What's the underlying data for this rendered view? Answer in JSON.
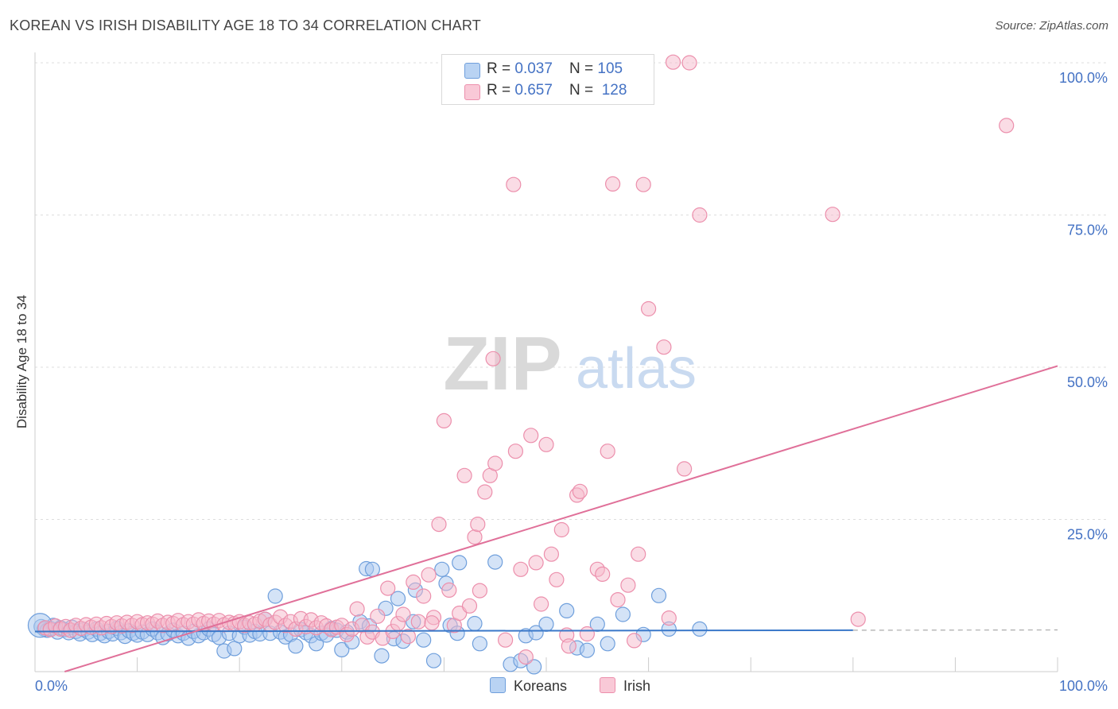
{
  "title": "KOREAN VS IRISH DISABILITY AGE 18 TO 34 CORRELATION CHART",
  "source": "Source: ZipAtlas.com",
  "watermark": {
    "zip": "ZIP",
    "atlas": "atlas"
  },
  "legend": {
    "rows": [
      {
        "r_label": "R = ",
        "r_value": "0.037",
        "n_label": "N = ",
        "n_value": "105"
      },
      {
        "r_label": "R = ",
        "r_value": "0.657",
        "n_label": "N = ",
        "n_value": "128"
      }
    ]
  },
  "bottom_legend": {
    "koreans": "Koreans",
    "irish": "Irish"
  },
  "colors": {
    "korean_fill": "#a9c8ef",
    "korean_stroke": "#6f9fdc",
    "korean_line": "#3a78c9",
    "irish_fill": "#f6b9cc",
    "irish_stroke": "#ec8fac",
    "irish_line": "#e07099",
    "tick_label": "#4472c4",
    "grid": "#dddddd"
  },
  "chart_data": {
    "type": "scatter",
    "title": "KOREAN VS IRISH DISABILITY AGE 18 TO 34 CORRELATION CHART",
    "xlabel": "",
    "ylabel": "Disability Age 18 to 34",
    "xlim": [
      0,
      100
    ],
    "ylim": [
      0,
      100
    ],
    "x_tick_labels": [
      "0.0%",
      "100.0%"
    ],
    "y_ticks": [
      25,
      50,
      75,
      100
    ],
    "y_tick_labels": [
      "25.0%",
      "50.0%",
      "75.0%",
      "100.0%"
    ],
    "grid": true,
    "legend_position": "top-center",
    "series": [
      {
        "name": "Koreans",
        "r": 0.037,
        "n": 105,
        "trend": {
          "x": [
            0,
            80
          ],
          "y": [
            6.6,
            6.8
          ],
          "dashed_extension_to": 100
        },
        "points": [
          [
            0.6,
            7.4
          ],
          [
            0.9,
            7.0
          ],
          [
            1.2,
            6.8
          ],
          [
            1.5,
            7.1
          ],
          [
            1.8,
            7.6
          ],
          [
            2.2,
            6.5
          ],
          [
            2.5,
            7.2
          ],
          [
            2.9,
            6.9
          ],
          [
            3.3,
            6.4
          ],
          [
            3.6,
            7.3
          ],
          [
            4.0,
            6.6
          ],
          [
            4.4,
            6.2
          ],
          [
            4.8,
            6.9
          ],
          [
            5.2,
            6.5
          ],
          [
            5.6,
            6.1
          ],
          [
            6.0,
            7.0
          ],
          [
            6.4,
            6.3
          ],
          [
            6.8,
            5.9
          ],
          [
            7.2,
            6.6
          ],
          [
            7.6,
            6.2
          ],
          [
            8.0,
            7.1
          ],
          [
            8.4,
            6.4
          ],
          [
            8.8,
            5.8
          ],
          [
            9.2,
            6.7
          ],
          [
            9.6,
            6.3
          ],
          [
            10.0,
            6.0
          ],
          [
            10.5,
            6.5
          ],
          [
            11.0,
            6.1
          ],
          [
            11.5,
            7.0
          ],
          [
            12.0,
            6.4
          ],
          [
            12.5,
            5.6
          ],
          [
            13.0,
            6.2
          ],
          [
            13.5,
            6.8
          ],
          [
            14.0,
            5.9
          ],
          [
            14.5,
            6.3
          ],
          [
            15.0,
            5.5
          ],
          [
            15.5,
            6.6
          ],
          [
            16.0,
            5.9
          ],
          [
            16.5,
            6.4
          ],
          [
            17.0,
            7.0
          ],
          [
            17.5,
            6.1
          ],
          [
            18.0,
            5.6
          ],
          [
            18.5,
            3.4
          ],
          [
            19.0,
            6.3
          ],
          [
            19.5,
            3.8
          ],
          [
            20.0,
            5.9
          ],
          [
            20.5,
            7.3
          ],
          [
            21.0,
            6.0
          ],
          [
            21.5,
            6.6
          ],
          [
            22.0,
            6.2
          ],
          [
            22.5,
            8.6
          ],
          [
            23.0,
            6.3
          ],
          [
            23.5,
            12.4
          ],
          [
            24.0,
            6.5
          ],
          [
            24.5,
            5.7
          ],
          [
            25.0,
            6.1
          ],
          [
            25.5,
            4.2
          ],
          [
            26.0,
            6.9
          ],
          [
            26.5,
            6.4
          ],
          [
            27.0,
            5.9
          ],
          [
            27.5,
            4.6
          ],
          [
            28.0,
            6.3
          ],
          [
            28.5,
            6.0
          ],
          [
            29.0,
            7.1
          ],
          [
            29.5,
            6.8
          ],
          [
            30.0,
            3.6
          ],
          [
            30.5,
            6.5
          ],
          [
            31.0,
            4.9
          ],
          [
            31.8,
            8.2
          ],
          [
            32.4,
            16.9
          ],
          [
            32.7,
            7.5
          ],
          [
            33.0,
            16.8
          ],
          [
            33.9,
            2.6
          ],
          [
            34.3,
            10.4
          ],
          [
            35.1,
            5.4
          ],
          [
            35.5,
            12.0
          ],
          [
            36.0,
            5.0
          ],
          [
            37.0,
            8.2
          ],
          [
            38.0,
            5.2
          ],
          [
            39.0,
            1.8
          ],
          [
            39.8,
            16.8
          ],
          [
            40.2,
            14.5
          ],
          [
            40.6,
            7.6
          ],
          [
            41.3,
            6.3
          ],
          [
            41.5,
            17.9
          ],
          [
            43.0,
            7.9
          ],
          [
            43.5,
            4.6
          ],
          [
            45.0,
            18.0
          ],
          [
            46.5,
            1.2
          ],
          [
            47.5,
            1.8
          ],
          [
            48.0,
            5.9
          ],
          [
            49.0,
            6.4
          ],
          [
            50.0,
            7.8
          ],
          [
            52.0,
            10.0
          ],
          [
            53.0,
            3.9
          ],
          [
            54.0,
            3.5
          ],
          [
            55.0,
            7.8
          ],
          [
            56.0,
            4.6
          ],
          [
            59.5,
            6.1
          ],
          [
            61.0,
            12.5
          ],
          [
            62.0,
            7.0
          ],
          [
            65.0,
            7.0
          ],
          [
            37.2,
            13.4
          ],
          [
            48.8,
            0.8
          ],
          [
            57.5,
            9.4
          ]
        ]
      },
      {
        "name": "Irish",
        "r": 0.657,
        "n": 128,
        "trend": {
          "x": [
            0,
            100
          ],
          "y": [
            -1.5,
            50.2
          ]
        },
        "points": [
          [
            1.0,
            7.2
          ],
          [
            1.5,
            6.9
          ],
          [
            2.0,
            7.5
          ],
          [
            2.5,
            7.0
          ],
          [
            3.0,
            7.4
          ],
          [
            3.5,
            6.8
          ],
          [
            4.0,
            7.6
          ],
          [
            4.5,
            7.1
          ],
          [
            5.0,
            7.7
          ],
          [
            5.5,
            7.3
          ],
          [
            6.0,
            7.8
          ],
          [
            6.5,
            7.2
          ],
          [
            7.0,
            7.9
          ],
          [
            7.5,
            7.4
          ],
          [
            8.0,
            8.0
          ],
          [
            8.5,
            7.5
          ],
          [
            9.0,
            8.1
          ],
          [
            9.5,
            7.6
          ],
          [
            10.0,
            8.2
          ],
          [
            10.5,
            7.7
          ],
          [
            11.0,
            8.0
          ],
          [
            11.5,
            7.8
          ],
          [
            12.0,
            8.3
          ],
          [
            12.5,
            7.6
          ],
          [
            13.0,
            8.1
          ],
          [
            13.5,
            7.9
          ],
          [
            14.0,
            8.4
          ],
          [
            14.5,
            7.7
          ],
          [
            15.0,
            8.2
          ],
          [
            15.5,
            7.8
          ],
          [
            16.0,
            8.5
          ],
          [
            16.5,
            7.9
          ],
          [
            17.0,
            8.3
          ],
          [
            17.5,
            7.8
          ],
          [
            18.0,
            8.4
          ],
          [
            18.5,
            7.7
          ],
          [
            19.0,
            8.1
          ],
          [
            19.5,
            7.9
          ],
          [
            20.0,
            8.2
          ],
          [
            20.5,
            7.6
          ],
          [
            21.0,
            8.0
          ],
          [
            21.5,
            7.8
          ],
          [
            22.0,
            8.3
          ],
          [
            22.5,
            8.6
          ],
          [
            23.0,
            7.7
          ],
          [
            23.5,
            8.1
          ],
          [
            24.0,
            9.0
          ],
          [
            24.5,
            7.6
          ],
          [
            25.0,
            8.2
          ],
          [
            25.5,
            7.0
          ],
          [
            26.0,
            8.7
          ],
          [
            26.5,
            7.4
          ],
          [
            27.0,
            8.5
          ],
          [
            27.5,
            7.2
          ],
          [
            28.0,
            8.0
          ],
          [
            28.5,
            7.5
          ],
          [
            29.0,
            6.9
          ],
          [
            29.5,
            7.3
          ],
          [
            30.0,
            7.6
          ],
          [
            30.5,
            6.1
          ],
          [
            31.0,
            7.0
          ],
          [
            31.5,
            10.3
          ],
          [
            32.0,
            7.6
          ],
          [
            32.5,
            5.7
          ],
          [
            33.0,
            6.5
          ],
          [
            33.5,
            9.1
          ],
          [
            34.0,
            5.5
          ],
          [
            34.5,
            13.7
          ],
          [
            35.0,
            6.6
          ],
          [
            35.5,
            7.9
          ],
          [
            36.0,
            9.4
          ],
          [
            36.5,
            5.8
          ],
          [
            37.0,
            14.7
          ],
          [
            37.5,
            8.2
          ],
          [
            38.0,
            12.4
          ],
          [
            38.5,
            15.9
          ],
          [
            39.0,
            8.9
          ],
          [
            39.5,
            24.2
          ],
          [
            40.0,
            41.2
          ],
          [
            40.5,
            13.4
          ],
          [
            41.0,
            7.6
          ],
          [
            41.5,
            9.6
          ],
          [
            42.0,
            32.2
          ],
          [
            42.5,
            10.8
          ],
          [
            43.0,
            22.1
          ],
          [
            43.5,
            13.3
          ],
          [
            44.0,
            29.5
          ],
          [
            44.5,
            32.2
          ],
          [
            45.0,
            34.2
          ],
          [
            46.0,
            5.2
          ],
          [
            47.0,
            36.2
          ],
          [
            47.5,
            16.8
          ],
          [
            48.0,
            2.4
          ],
          [
            48.5,
            38.8
          ],
          [
            49.0,
            17.9
          ],
          [
            49.5,
            11.1
          ],
          [
            50.0,
            37.3
          ],
          [
            50.5,
            19.3
          ],
          [
            51.0,
            15.1
          ],
          [
            51.5,
            23.3
          ],
          [
            52.0,
            6.0
          ],
          [
            53.0,
            29.0
          ],
          [
            53.3,
            29.6
          ],
          [
            54.0,
            6.2
          ],
          [
            55.0,
            16.8
          ],
          [
            55.5,
            16.0
          ],
          [
            56.0,
            36.2
          ],
          [
            57.0,
            11.8
          ],
          [
            58.0,
            14.2
          ],
          [
            59.0,
            19.3
          ],
          [
            60.0,
            59.6
          ],
          [
            61.5,
            53.3
          ],
          [
            62.0,
            8.8
          ],
          [
            63.5,
            33.3
          ],
          [
            64.0,
            100.0
          ],
          [
            65.0,
            75.0
          ],
          [
            62.4,
            100.1
          ],
          [
            59.5,
            80.0
          ],
          [
            56.5,
            80.1
          ],
          [
            46.8,
            80.0
          ],
          [
            58.6,
            5.1
          ],
          [
            52.2,
            4.2
          ],
          [
            78.0,
            75.1
          ],
          [
            95.0,
            89.7
          ],
          [
            44.8,
            51.4
          ],
          [
            43.3,
            24.2
          ],
          [
            38.8,
            8.0
          ],
          [
            80.5,
            8.6
          ]
        ]
      }
    ]
  }
}
